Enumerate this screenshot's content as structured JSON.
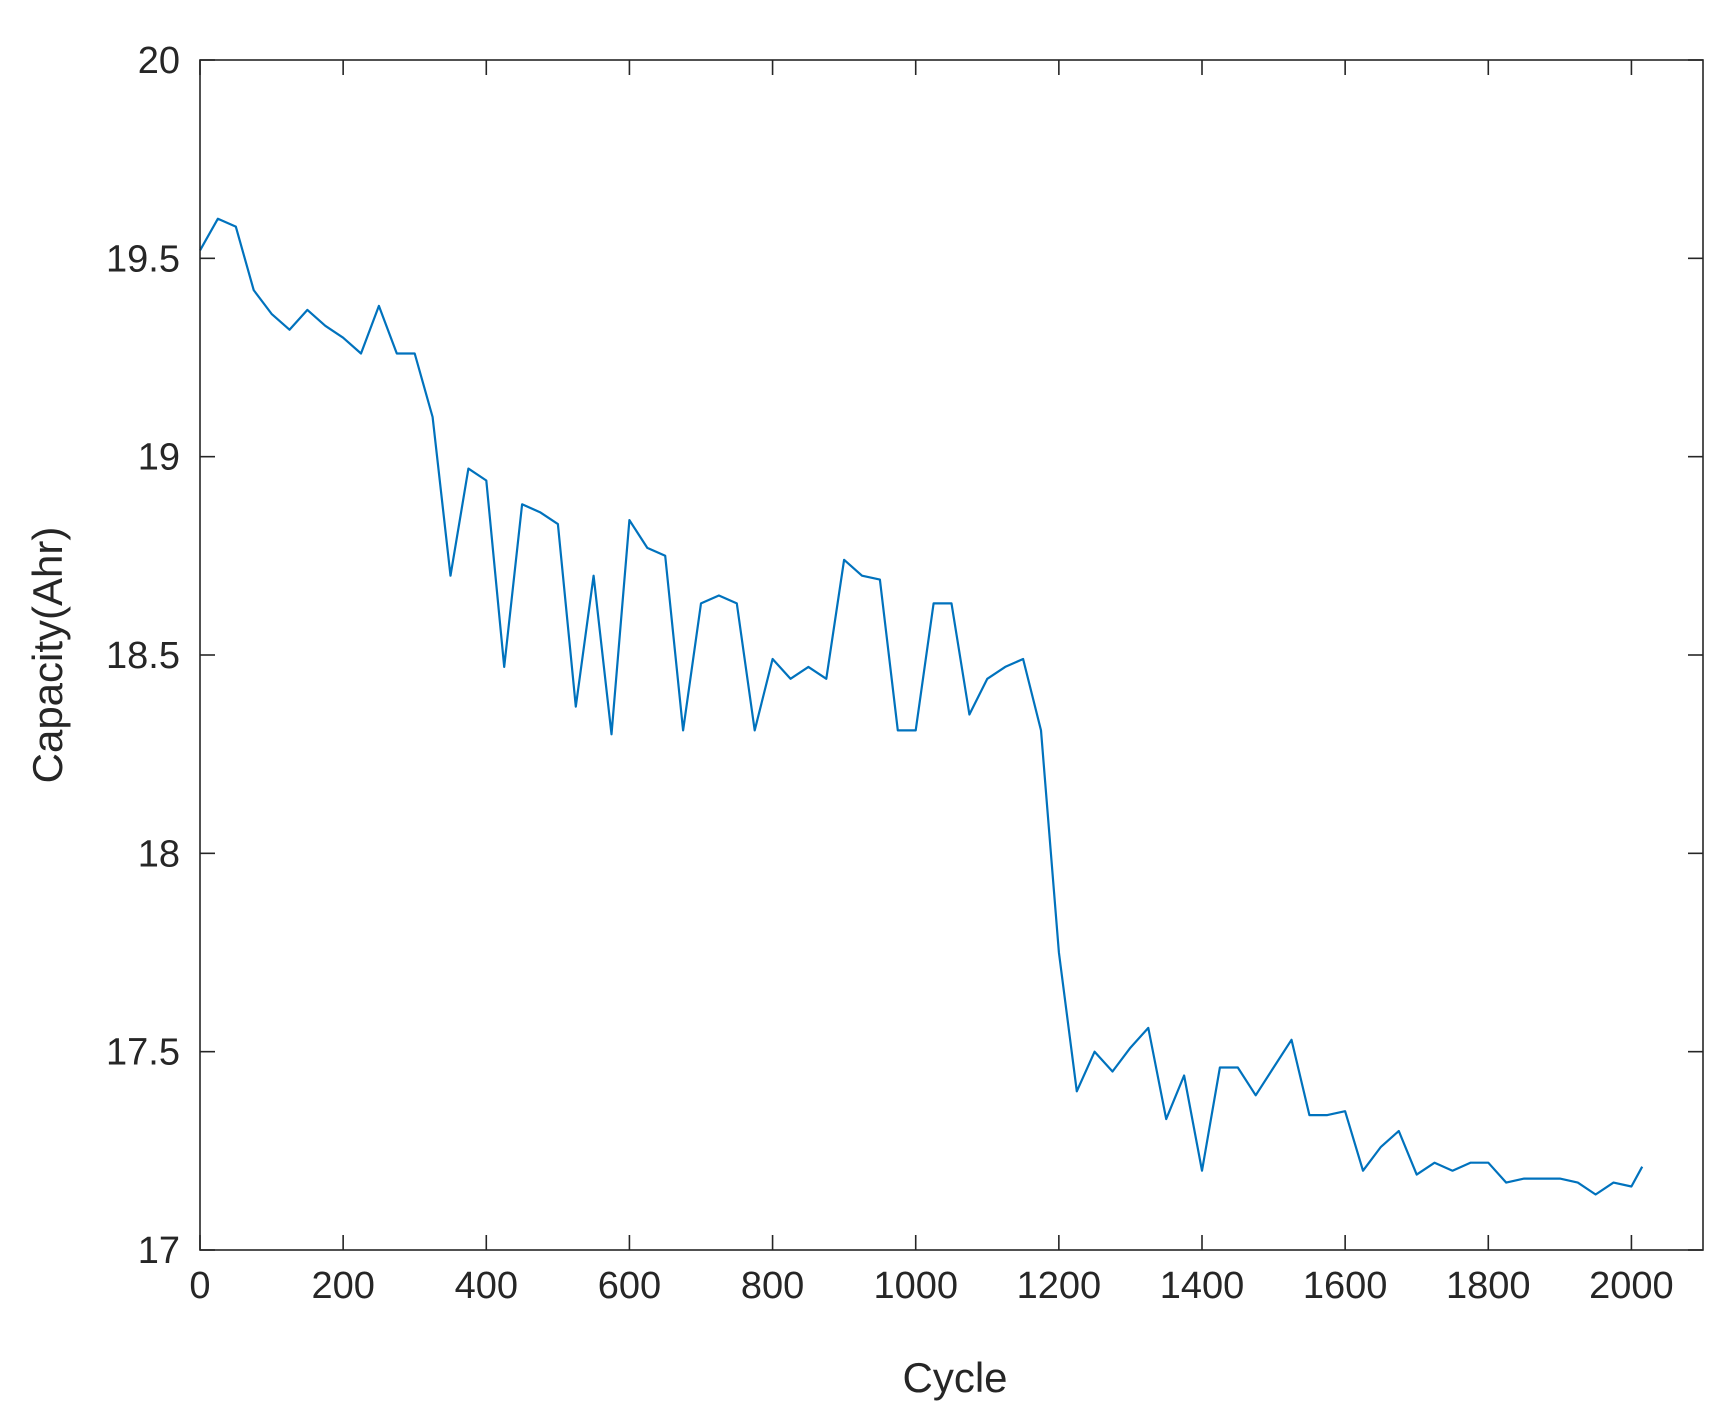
{
  "chart_data": {
    "type": "line",
    "xlabel": "Cycle",
    "ylabel": "Capacity(Ahr)",
    "xlim": [
      0,
      2100
    ],
    "ylim": [
      17,
      20
    ],
    "xticks": [
      0,
      200,
      400,
      600,
      800,
      1000,
      1200,
      1400,
      1600,
      1800,
      2000
    ],
    "xtick_labels": [
      "0",
      "200",
      "400",
      "600",
      "800",
      "1000",
      "1200",
      "1400",
      "1600",
      "1800",
      "2000"
    ],
    "yticks": [
      17,
      17.5,
      18,
      18.5,
      19,
      19.5,
      20
    ],
    "ytick_labels": [
      "17",
      "17.5",
      "18",
      "18.5",
      "19",
      "19.5",
      "20"
    ],
    "grid": false,
    "line_color": "#0072bd",
    "series": [
      {
        "x": [
          0,
          25,
          50,
          75,
          100,
          125,
          150,
          175,
          200,
          225,
          250,
          275,
          300,
          325,
          350,
          375,
          400,
          425,
          450,
          475,
          500,
          525,
          550,
          575,
          600,
          625,
          650,
          675,
          700,
          725,
          750,
          775,
          800,
          825,
          850,
          875,
          900,
          925,
          950,
          975,
          1000,
          1025,
          1050,
          1075,
          1100,
          1125,
          1150,
          1175,
          1200,
          1225,
          1250,
          1275,
          1300,
          1325,
          1350,
          1375,
          1400,
          1425,
          1450,
          1475,
          1500,
          1525,
          1550,
          1575,
          1600,
          1625,
          1650,
          1675,
          1700,
          1725,
          1750,
          1775,
          1800,
          1825,
          1850,
          1875,
          1900,
          1925,
          1950,
          1975,
          2000,
          2015
        ],
        "y": [
          19.52,
          19.6,
          19.58,
          19.42,
          19.36,
          19.32,
          19.37,
          19.33,
          19.3,
          19.26,
          19.38,
          19.26,
          19.26,
          19.1,
          18.7,
          18.97,
          18.94,
          18.47,
          18.88,
          18.86,
          18.83,
          18.37,
          18.7,
          18.3,
          18.84,
          18.77,
          18.75,
          18.31,
          18.63,
          18.65,
          18.63,
          18.31,
          18.49,
          18.44,
          18.47,
          18.44,
          18.74,
          18.7,
          18.69,
          18.31,
          18.31,
          18.63,
          18.63,
          18.35,
          18.44,
          18.47,
          18.49,
          18.31,
          17.75,
          17.4,
          17.5,
          17.45,
          17.51,
          17.56,
          17.33,
          17.44,
          17.2,
          17.46,
          17.46,
          17.39,
          17.46,
          17.53,
          17.34,
          17.34,
          17.35,
          17.2,
          17.26,
          17.3,
          17.19,
          17.22,
          17.2,
          17.22,
          17.22,
          17.17,
          17.18,
          17.18,
          17.18,
          17.17,
          17.14,
          17.17,
          17.16,
          17.21
        ]
      }
    ]
  }
}
